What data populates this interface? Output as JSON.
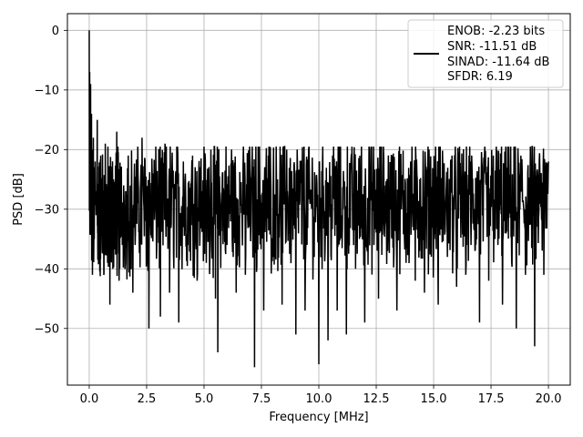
{
  "chart_data": {
    "type": "line",
    "xlabel": "Frequency [MHz]",
    "ylabel": "PSD [dB]",
    "xlim": [
      -0.95,
      20.95
    ],
    "ylim": [
      -59.5,
      2.8
    ],
    "xticks": [
      0.0,
      2.5,
      5.0,
      7.5,
      10.0,
      12.5,
      15.0,
      17.5,
      20.0
    ],
    "xtick_labels": [
      "0.0",
      "2.5",
      "5.0",
      "7.5",
      "10.0",
      "12.5",
      "15.0",
      "17.5",
      "20.0"
    ],
    "yticks": [
      0,
      -10,
      -20,
      -30,
      -40,
      -50
    ],
    "ytick_labels": [
      "0",
      "−10",
      "−20",
      "−30",
      "−40",
      "−50"
    ],
    "grid": true,
    "legend_position": "top-right",
    "legend": {
      "lines": [
        "ENOB: -2.23 bits",
        "SNR: -11.51 dB",
        "SINAD: -11.64 dB",
        "SFDR: 6.19"
      ]
    },
    "series": [
      {
        "color": "#000000",
        "description_of_shape": "noise-floor spectrum: peak 0 dB at DC, dense noise between about -20 dB and -45 dB",
        "points": [
          [
            0.0,
            0.0
          ],
          [
            0.02,
            -7.0
          ],
          [
            0.04,
            -12.0
          ],
          [
            0.06,
            -9.0
          ],
          [
            0.08,
            -17.0
          ],
          [
            0.1,
            -14.0
          ],
          [
            0.12,
            -20.0
          ],
          [
            0.14,
            -41.0
          ],
          [
            0.18,
            -18.0
          ],
          [
            0.22,
            -35.0
          ],
          [
            0.26,
            -22.0
          ],
          [
            0.3,
            -31.0
          ],
          [
            0.35,
            -15.0
          ],
          [
            0.4,
            -28.0
          ],
          [
            0.45,
            -37.0
          ],
          [
            0.5,
            -21.0
          ],
          [
            0.6,
            -30.0
          ],
          [
            0.7,
            -19.0
          ],
          [
            0.8,
            -39.0
          ],
          [
            0.9,
            -46.0
          ],
          [
            1.0,
            -24.0
          ],
          [
            1.1,
            -34.0
          ],
          [
            1.2,
            -17.0
          ],
          [
            1.3,
            -42.0
          ],
          [
            1.5,
            -26.0
          ],
          [
            1.7,
            -21.0
          ],
          [
            1.9,
            -44.0
          ],
          [
            2.1,
            -29.0
          ],
          [
            2.3,
            -18.0
          ],
          [
            2.5,
            -39.0
          ],
          [
            2.6,
            -50.0
          ],
          [
            2.8,
            -24.0
          ],
          [
            3.0,
            -33.0
          ],
          [
            3.1,
            -48.0
          ],
          [
            3.3,
            -19.0
          ],
          [
            3.5,
            -44.0
          ],
          [
            3.7,
            -27.0
          ],
          [
            3.9,
            -49.0
          ],
          [
            4.1,
            -22.0
          ],
          [
            4.3,
            -36.0
          ],
          [
            4.5,
            -21.0
          ],
          [
            4.7,
            -42.0
          ],
          [
            4.9,
            -27.0
          ],
          [
            5.1,
            -39.0
          ],
          [
            5.3,
            -20.0
          ],
          [
            5.5,
            -45.0
          ],
          [
            5.6,
            -54.0
          ],
          [
            5.8,
            -24.0
          ],
          [
            6.0,
            -36.0
          ],
          [
            6.2,
            -20.0
          ],
          [
            6.4,
            -44.0
          ],
          [
            6.6,
            -29.0
          ],
          [
            6.8,
            -41.0
          ],
          [
            7.0,
            -22.0
          ],
          [
            7.2,
            -56.5
          ],
          [
            7.4,
            -27.0
          ],
          [
            7.6,
            -47.0
          ],
          [
            7.8,
            -21.0
          ],
          [
            8.0,
            -38.0
          ],
          [
            8.2,
            -25.0
          ],
          [
            8.4,
            -46.0
          ],
          [
            8.6,
            -20.0
          ],
          [
            8.8,
            -35.0
          ],
          [
            9.0,
            -51.0
          ],
          [
            9.2,
            -23.0
          ],
          [
            9.4,
            -47.0
          ],
          [
            9.6,
            -28.0
          ],
          [
            9.8,
            -38.0
          ],
          [
            10.0,
            -56.0
          ],
          [
            10.2,
            -26.0
          ],
          [
            10.4,
            -52.0
          ],
          [
            10.6,
            -21.0
          ],
          [
            10.8,
            -47.0
          ],
          [
            11.0,
            -31.0
          ],
          [
            11.2,
            -51.0
          ],
          [
            11.4,
            -22.0
          ],
          [
            11.6,
            -40.0
          ],
          [
            11.8,
            -28.0
          ],
          [
            12.0,
            -49.0
          ],
          [
            12.2,
            -20.0
          ],
          [
            12.4,
            -36.0
          ],
          [
            12.6,
            -45.0
          ],
          [
            12.8,
            -24.0
          ],
          [
            13.0,
            -37.0
          ],
          [
            13.2,
            -21.0
          ],
          [
            13.4,
            -47.0
          ],
          [
            13.6,
            -30.0
          ],
          [
            13.8,
            -39.0
          ],
          [
            14.0,
            -22.0
          ],
          [
            14.2,
            -42.0
          ],
          [
            14.4,
            -25.0
          ],
          [
            14.6,
            -44.0
          ],
          [
            14.8,
            -20.0
          ],
          [
            15.0,
            -36.0
          ],
          [
            15.2,
            -46.0
          ],
          [
            15.4,
            -23.0
          ],
          [
            15.6,
            -38.0
          ],
          [
            15.8,
            -21.0
          ],
          [
            16.0,
            -43.0
          ],
          [
            16.2,
            -27.0
          ],
          [
            16.4,
            -41.0
          ],
          [
            16.6,
            -22.0
          ],
          [
            16.8,
            -37.0
          ],
          [
            17.0,
            -49.0
          ],
          [
            17.2,
            -24.0
          ],
          [
            17.4,
            -42.0
          ],
          [
            17.6,
            -21.0
          ],
          [
            17.8,
            -36.0
          ],
          [
            18.0,
            -46.0
          ],
          [
            18.2,
            -23.0
          ],
          [
            18.4,
            -39.0
          ],
          [
            18.6,
            -50.0
          ],
          [
            18.8,
            -21.0
          ],
          [
            19.0,
            -41.0
          ],
          [
            19.2,
            -26.0
          ],
          [
            19.4,
            -53.0
          ],
          [
            19.6,
            -22.0
          ],
          [
            19.8,
            -41.0
          ],
          [
            20.0,
            -22.0
          ]
        ]
      }
    ]
  }
}
